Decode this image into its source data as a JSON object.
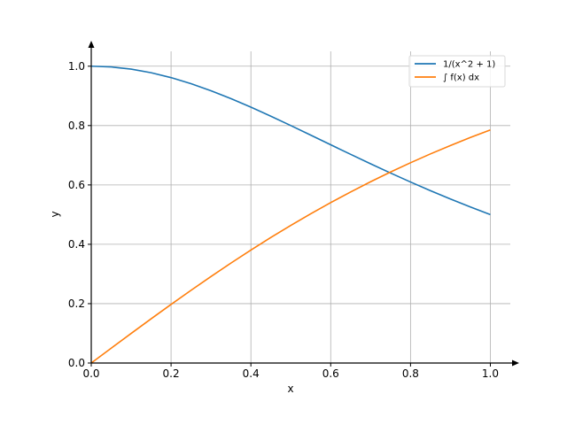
{
  "chart_data": {
    "type": "line",
    "xlabel": "x",
    "ylabel": "y",
    "xlim": [
      0,
      1.05
    ],
    "ylim": [
      0,
      1.05
    ],
    "x_ticks": [
      {
        "value": 0.0,
        "label": "0.0"
      },
      {
        "value": 0.2,
        "label": "0.2"
      },
      {
        "value": 0.4,
        "label": "0.4"
      },
      {
        "value": 0.6,
        "label": "0.6"
      },
      {
        "value": 0.8,
        "label": "0.8"
      },
      {
        "value": 1.0,
        "label": "1.0"
      }
    ],
    "y_ticks": [
      {
        "value": 0.0,
        "label": "0.0"
      },
      {
        "value": 0.2,
        "label": "0.2"
      },
      {
        "value": 0.4,
        "label": "0.4"
      },
      {
        "value": 0.6,
        "label": "0.6"
      },
      {
        "value": 0.8,
        "label": "0.8"
      },
      {
        "value": 1.0,
        "label": "1.0"
      }
    ],
    "grid": true,
    "legend_position": "top-right",
    "x": [
      0.0,
      0.05,
      0.1,
      0.15,
      0.2,
      0.25,
      0.3,
      0.35,
      0.4,
      0.45,
      0.5,
      0.55,
      0.6,
      0.65,
      0.7,
      0.75,
      0.8,
      0.85,
      0.9,
      0.95,
      1.0
    ],
    "series": [
      {
        "name": "1/(x^2 + 1)",
        "color": "#1f77b4",
        "values": [
          1.0,
          0.9975,
          0.9901,
          0.978,
          0.9615,
          0.9412,
          0.9174,
          0.8909,
          0.8621,
          0.8316,
          0.8,
          0.7678,
          0.7353,
          0.703,
          0.6711,
          0.64,
          0.6098,
          0.5806,
          0.5525,
          0.5256,
          0.5
        ]
      },
      {
        "name": "∫ f(x) dx",
        "color": "#ff7f0e",
        "values": [
          0.0,
          0.05,
          0.0997,
          0.1489,
          0.1974,
          0.245,
          0.2915,
          0.3367,
          0.3805,
          0.4229,
          0.4636,
          0.5028,
          0.5404,
          0.5764,
          0.6107,
          0.6435,
          0.6747,
          0.7045,
          0.7328,
          0.7598,
          0.7854
        ]
      }
    ]
  }
}
